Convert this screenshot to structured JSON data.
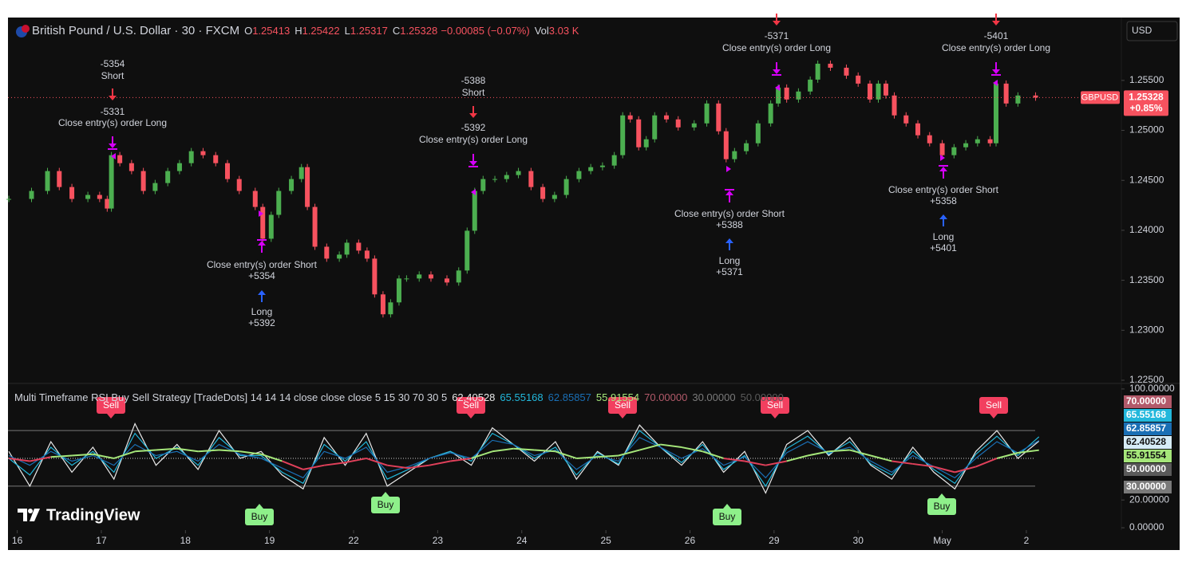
{
  "header": {
    "symbol": "British Pound / U.S. Dollar · 30 · FXCM",
    "fields": [
      {
        "label": "O",
        "value": 1.25413
      },
      {
        "label": "H",
        "value": 1.25422
      },
      {
        "label": "L",
        "value": 1.25317
      },
      {
        "label": "C",
        "value": 1.25328
      }
    ],
    "change": "−0.00085 (−0.07%)",
    "volume_label": "Vol",
    "volume": "3.03 K"
  },
  "currency": "USD",
  "brand": "TradingView",
  "chart_data": [
    {
      "type": "candlestick",
      "x": [
        -0.1,
        0.17,
        0.36,
        0.5,
        0.65,
        0.84,
        0.98,
        1.07,
        1.12,
        1.22,
        1.36,
        1.5,
        1.64,
        1.79,
        1.93,
        2.07,
        2.21,
        2.36,
        2.5,
        2.64,
        2.83,
        2.92,
        3.02,
        3.11,
        3.26,
        3.38,
        3.45,
        3.54,
        3.68,
        3.83,
        3.92,
        4.06,
        4.16,
        4.25,
        4.35,
        4.44,
        4.54,
        4.63,
        4.78,
        4.92,
        5.11,
        5.25,
        5.35,
        5.44,
        5.54,
        5.68,
        5.82,
        5.96,
        6.11,
        6.25,
        6.39,
        6.53,
        6.68,
        6.82,
        6.96,
        7.1,
        7.2,
        7.29,
        7.39,
        7.48,
        7.58,
        7.72,
        7.86,
        8.05,
        8.2,
        8.34,
        8.43,
        8.53,
        8.67,
        8.81,
        8.96,
        9.05,
        9.15,
        9.29,
        9.43,
        9.52,
        9.67,
        9.86,
        10.0,
        10.14,
        10.24,
        10.33,
        10.43,
        10.57,
        10.71,
        10.85,
        11.0,
        11.14,
        11.28,
        11.42,
        11.57,
        11.64,
        11.76,
        11.9,
        12.11
      ],
      "values": [
        1.24314,
        1.24394,
        1.24593,
        1.24433,
        1.24314,
        1.24354,
        1.24314,
        1.24218,
        1.24752,
        1.24672,
        1.24593,
        1.24394,
        1.24473,
        1.24593,
        1.24672,
        1.24792,
        1.24752,
        1.24672,
        1.24513,
        1.24394,
        1.24234,
        1.23916,
        1.24155,
        1.24394,
        1.24513,
        1.24632,
        1.24234,
        1.23836,
        1.23717,
        1.23757,
        1.23876,
        1.23797,
        1.23717,
        1.23359,
        1.2316,
        1.23279,
        1.23518,
        1.23518,
        1.23558,
        1.23518,
        1.23478,
        1.23598,
        1.23996,
        1.24394,
        1.24513,
        1.24513,
        1.24553,
        1.24593,
        1.24433,
        1.24314,
        1.24354,
        1.24513,
        1.24593,
        1.24632,
        1.24648,
        1.24752,
        1.2515,
        1.2511,
        1.24831,
        1.24911,
        1.2515,
        1.2511,
        1.2503,
        1.2507,
        1.25269,
        1.24991,
        1.24712,
        1.24792,
        1.24871,
        1.2507,
        1.25269,
        1.25428,
        1.25309,
        1.25389,
        1.25508,
        1.25667,
        1.25627,
        1.25548,
        1.25468,
        1.25309,
        1.25468,
        1.25349,
        1.2515,
        1.2507,
        1.24951,
        1.24871,
        1.24752,
        1.24831,
        1.24871,
        1.24911,
        1.24871,
        1.25468,
        1.25269,
        1.25349,
        1.25328
      ],
      "up_color": "#4caf50",
      "down_color": "#f7525f",
      "xlim": [
        -0.11,
        13.13
      ],
      "xticks": [
        {
          "value": 0,
          "label": "16"
        },
        {
          "value": 1,
          "label": "17"
        },
        {
          "value": 2,
          "label": "18"
        },
        {
          "value": 3,
          "label": "19"
        },
        {
          "value": 4,
          "label": "22"
        },
        {
          "value": 5,
          "label": "23"
        },
        {
          "value": 6,
          "label": "24"
        },
        {
          "value": 7,
          "label": "25"
        },
        {
          "value": 8,
          "label": "26"
        },
        {
          "value": 9,
          "label": "29"
        },
        {
          "value": 10,
          "label": "30"
        },
        {
          "value": 11,
          "label": "May"
        },
        {
          "value": 12,
          "label": "2"
        }
      ],
      "ylim": [
        1.22476,
        1.26129
      ],
      "yticks": [
        {
          "value": 1.225,
          "label": "1.22500"
        },
        {
          "value": 1.23,
          "label": "1.23000"
        },
        {
          "value": 1.235,
          "label": "1.23500"
        },
        {
          "value": 1.24,
          "label": "1.24000"
        },
        {
          "value": 1.245,
          "label": "1.24500"
        },
        {
          "value": 1.25,
          "label": "1.25000"
        },
        {
          "value": 1.255,
          "label": "1.25500"
        }
      ],
      "grid": false,
      "symbol_label": "GBPUSD",
      "last_price": 1.25328,
      "change_label": "+0.85%",
      "annotations": [
        "-5354",
        "Short",
        "-5331",
        "Close entry(s) order Long",
        "Close entry(s) order Short",
        "+5354",
        "Long",
        "+5392",
        "-5388",
        "Short",
        "-5392",
        "Close entry(s) order Long",
        "-5371",
        "Close entry(s) order Long",
        "Close entry(s) order Short",
        "+5388",
        "Long",
        "+5371",
        "-5401",
        "Close entry(s) order Long",
        "Close entry(s) order Short",
        "+5358",
        "Long",
        "+5401"
      ]
    },
    {
      "type": "line",
      "title": "Multi Timeframe RSI Buy Sell Strategy [TradeDots] 14 14 14 close close close 5 15 30 70 30 5",
      "x": [
        -0.1,
        0.15,
        0.4,
        0.65,
        0.9,
        1.15,
        1.4,
        1.65,
        1.9,
        2.15,
        2.4,
        2.65,
        2.9,
        3.15,
        3.4,
        3.65,
        3.9,
        4.15,
        4.4,
        4.65,
        4.9,
        5.15,
        5.4,
        5.65,
        5.9,
        6.15,
        6.4,
        6.65,
        6.9,
        7.15,
        7.4,
        7.65,
        7.9,
        8.15,
        8.4,
        8.65,
        8.9,
        9.15,
        9.4,
        9.65,
        9.9,
        10.15,
        10.4,
        10.65,
        10.9,
        11.15,
        11.4,
        11.65,
        11.9,
        12.15
      ],
      "series": [
        {
          "color": "#e8e8e8",
          "values": [
            55,
            30,
            62,
            40,
            58,
            35,
            75,
            45,
            60,
            42,
            70,
            50,
            55,
            38,
            28,
            65,
            45,
            68,
            30,
            40,
            50,
            55,
            45,
            72,
            60,
            48,
            62,
            35,
            55,
            45,
            74,
            58,
            45,
            62,
            40,
            55,
            25,
            60,
            70,
            52,
            65,
            45,
            35,
            58,
            40,
            28,
            55,
            70,
            50,
            62.40528
          ]
        },
        {
          "color": "#22b8dc",
          "values": [
            50,
            38,
            58,
            45,
            55,
            40,
            68,
            50,
            58,
            45,
            65,
            52,
            52,
            40,
            32,
            60,
            48,
            62,
            35,
            42,
            50,
            55,
            48,
            68,
            60,
            50,
            58,
            38,
            54,
            46,
            70,
            58,
            47,
            60,
            42,
            52,
            30,
            57,
            66,
            53,
            62,
            46,
            38,
            55,
            42,
            32,
            53,
            66,
            52,
            65.55168
          ]
        },
        {
          "color": "#1a6fb5",
          "values": [
            52,
            45,
            55,
            48,
            52,
            45,
            60,
            52,
            55,
            48,
            60,
            53,
            50,
            43,
            36,
            55,
            50,
            58,
            40,
            44,
            50,
            54,
            50,
            63,
            60,
            52,
            56,
            42,
            52,
            48,
            65,
            58,
            50,
            57,
            45,
            51,
            36,
            54,
            62,
            54,
            58,
            48,
            40,
            52,
            44,
            36,
            50,
            62,
            54,
            62.85857
          ]
        },
        {
          "color": "#a5e67a",
          "down_color": "#e0405a",
          "values": [
            50,
            48,
            51,
            52,
            53,
            50,
            55,
            56,
            57,
            55,
            56,
            55,
            53,
            48,
            42,
            45,
            47,
            50,
            45,
            43,
            45,
            48,
            50,
            55,
            57,
            56,
            55,
            50,
            51,
            52,
            56,
            60,
            58,
            55,
            50,
            48,
            45,
            48,
            52,
            55,
            56,
            52,
            48,
            46,
            44,
            40,
            44,
            50,
            54,
            55.91554
          ]
        }
      ],
      "levels": [
        {
          "value": 70,
          "label": "70.00000",
          "color": "#b35a6a"
        },
        {
          "value": 30,
          "label": "30.00000",
          "color": "#7a7a7a"
        },
        {
          "value": 50,
          "label": "50.00000",
          "color": "#5a5a5a"
        }
      ],
      "ylim": [
        -1.7,
        103.4
      ],
      "yticks": [
        {
          "value": 0,
          "label": "0.00000"
        },
        {
          "value": 20,
          "label": "20.00000"
        },
        {
          "value": 100,
          "label": "100.00000"
        }
      ],
      "signals": [
        "Sell",
        "Buy",
        "Buy",
        "Sell",
        "Sell",
        "Buy",
        "Sell",
        "Buy",
        "Sell"
      ],
      "sell_color": "#f23f5f",
      "buy_color": "#8ef08a"
    }
  ]
}
